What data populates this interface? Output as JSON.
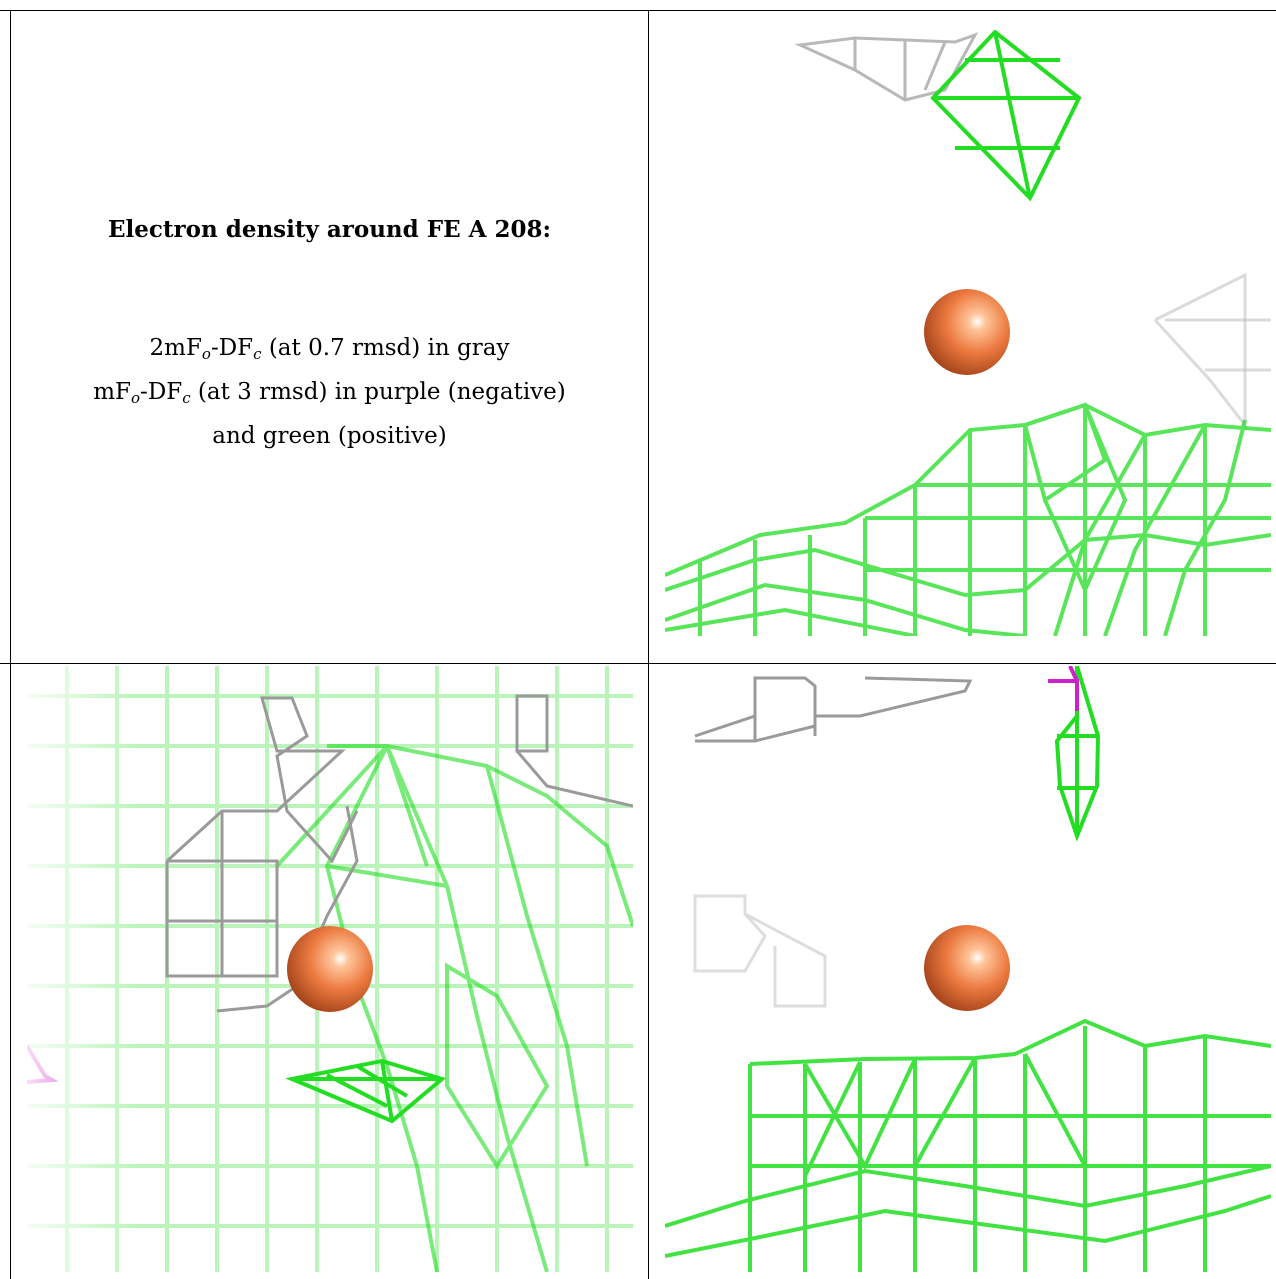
{
  "caption": {
    "title": "Electron density around FE A 208:",
    "line1": {
      "prefix": "2mF",
      "sub1": "o",
      "mid": "-DF",
      "sub2": "c",
      "suffix": " (at 0.7 rmsd) in gray"
    },
    "line2": {
      "prefix": "mF",
      "sub1": "o",
      "mid": "-DF",
      "sub2": "c",
      "suffix": " (at 3 rmsd) in purple (negative)"
    },
    "line3": "and green (positive)"
  },
  "colors": {
    "density_positive": "#22dd22",
    "density_negative": "#cc22cc",
    "density_2fofc": "#9a9a9a",
    "iron_atom": "#e8703a"
  },
  "panels": [
    {
      "id": "caption",
      "kind": "text"
    },
    {
      "id": "view-1",
      "kind": "density-view"
    },
    {
      "id": "view-2",
      "kind": "density-view"
    },
    {
      "id": "view-3",
      "kind": "density-view"
    }
  ]
}
